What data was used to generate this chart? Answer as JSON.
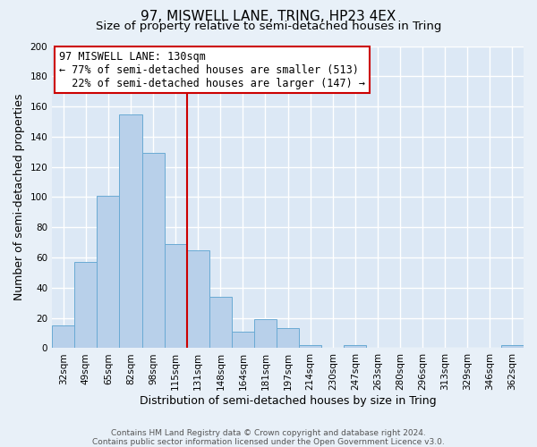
{
  "title": "97, MISWELL LANE, TRING, HP23 4EX",
  "subtitle": "Size of property relative to semi-detached houses in Tring",
  "xlabel": "Distribution of semi-detached houses by size in Tring",
  "ylabel": "Number of semi-detached properties",
  "bar_labels": [
    "32sqm",
    "49sqm",
    "65sqm",
    "82sqm",
    "98sqm",
    "115sqm",
    "131sqm",
    "148sqm",
    "164sqm",
    "181sqm",
    "197sqm",
    "214sqm",
    "230sqm",
    "247sqm",
    "263sqm",
    "280sqm",
    "296sqm",
    "313sqm",
    "329sqm",
    "346sqm",
    "362sqm"
  ],
  "bar_values": [
    15,
    57,
    101,
    155,
    129,
    69,
    65,
    34,
    11,
    19,
    13,
    2,
    0,
    2,
    0,
    0,
    0,
    0,
    0,
    0,
    2
  ],
  "bar_color": "#b8d0ea",
  "bar_edge_color": "#6aaad4",
  "property_line_label": "97 MISWELL LANE: 130sqm",
  "pct_smaller": 77,
  "pct_smaller_count": 513,
  "pct_larger": 22,
  "pct_larger_count": 147,
  "annotation_box_color": "#ffffff",
  "annotation_box_edge": "#cc0000",
  "vline_color": "#cc0000",
  "ylim": [
    0,
    200
  ],
  "yticks": [
    0,
    20,
    40,
    60,
    80,
    100,
    120,
    140,
    160,
    180,
    200
  ],
  "footer_line1": "Contains HM Land Registry data © Crown copyright and database right 2024.",
  "footer_line2": "Contains public sector information licensed under the Open Government Licence v3.0.",
  "background_color": "#e8f0f8",
  "plot_bg_color": "#dce8f5",
  "grid_color": "#ffffff",
  "title_fontsize": 11,
  "subtitle_fontsize": 9.5,
  "axis_label_fontsize": 9,
  "tick_fontsize": 7.5,
  "footer_fontsize": 6.5,
  "annotation_fontsize": 8.5,
  "vline_x_index": 6
}
